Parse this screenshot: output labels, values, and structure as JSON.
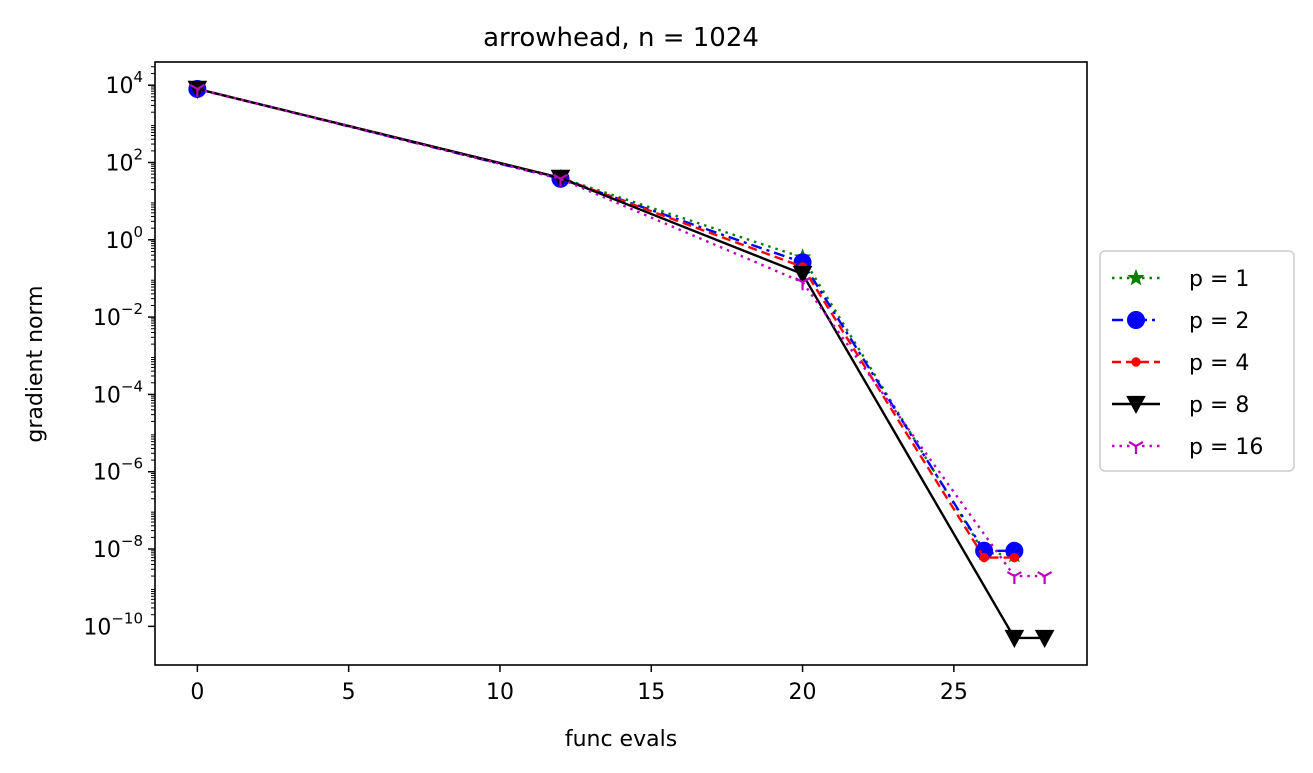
{
  "chart_data": {
    "type": "line",
    "title": "arrowhead, n = 1024",
    "xlabel": "func evals",
    "ylabel": "gradient norm",
    "xlim": [
      -1.4,
      29.4
    ],
    "ylim_log10": [
      -11,
      4.6
    ],
    "yscale": "log",
    "grid": false,
    "legend_position": "center right, outside plot",
    "x_ticks": [
      0,
      5,
      10,
      15,
      20,
      25
    ],
    "y_ticks": [
      {
        "exp": 4,
        "base": "10",
        "sup": "4"
      },
      {
        "exp": 2,
        "base": "10",
        "sup": "2"
      },
      {
        "exp": 0,
        "base": "10",
        "sup": "0"
      },
      {
        "exp": -2,
        "base": "10",
        "sup": "−2"
      },
      {
        "exp": -4,
        "base": "10",
        "sup": "−4"
      },
      {
        "exp": -6,
        "base": "10",
        "sup": "−6"
      },
      {
        "exp": -8,
        "base": "10",
        "sup": "−8"
      },
      {
        "exp": -10,
        "base": "10",
        "sup": "−10"
      }
    ],
    "series": [
      {
        "name": "p = 1",
        "color": "#008000",
        "linestyle": "dotted",
        "marker": "star",
        "points": [
          [
            0,
            8000
          ],
          [
            12,
            40
          ],
          [
            20,
            0.35
          ],
          [
            26,
            8e-09
          ],
          [
            27,
            7e-09
          ]
        ]
      },
      {
        "name": "p = 2",
        "color": "#0000ff",
        "linestyle": "dashdot",
        "marker": "circle",
        "points": [
          [
            0,
            8000
          ],
          [
            12,
            38
          ],
          [
            20,
            0.26
          ],
          [
            26,
            9e-09
          ],
          [
            27,
            9e-09
          ]
        ]
      },
      {
        "name": "p = 4",
        "color": "#ff0000",
        "linestyle": "dashed",
        "marker": "point",
        "points": [
          [
            0,
            8000
          ],
          [
            12,
            40
          ],
          [
            20,
            0.2
          ],
          [
            26,
            6e-09
          ],
          [
            27,
            6e-09
          ]
        ]
      },
      {
        "name": "p = 8",
        "color": "#000000",
        "linestyle": "solid",
        "marker": "triangle-down",
        "points": [
          [
            0,
            8000
          ],
          [
            12,
            40
          ],
          [
            20,
            0.13
          ],
          [
            27,
            5e-11
          ],
          [
            28,
            5e-11
          ]
        ]
      },
      {
        "name": "p = 16",
        "color": "#bf00bf",
        "linestyle": "dotted",
        "marker": "tri-down",
        "points": [
          [
            0,
            8000
          ],
          [
            12,
            38
          ],
          [
            20,
            0.08
          ],
          [
            27,
            2e-09
          ],
          [
            28,
            2e-09
          ]
        ]
      }
    ]
  }
}
